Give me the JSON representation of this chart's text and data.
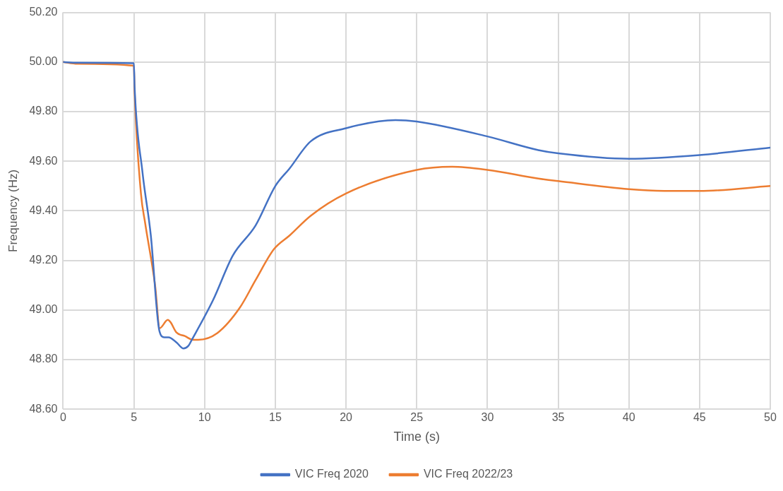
{
  "chart_data": {
    "type": "line",
    "xlabel": "Time (s)",
    "ylabel": "Frequency (Hz)",
    "xlim": [
      0,
      50
    ],
    "xticks": [
      0,
      5,
      10,
      15,
      20,
      25,
      30,
      35,
      40,
      45,
      50
    ],
    "ylim": [
      48.6,
      50.2
    ],
    "yticks": [
      {
        "value": 48.6,
        "label": "48.60"
      },
      {
        "value": 48.8,
        "label": "48.80"
      },
      {
        "value": 49.0,
        "label": "49.00"
      },
      {
        "value": 49.2,
        "label": "49.20"
      },
      {
        "value": 49.4,
        "label": "49.40"
      },
      {
        "value": 49.6,
        "label": "49.60"
      },
      {
        "value": 49.8,
        "label": "49.80"
      },
      {
        "value": 50.0,
        "label": "50.00"
      },
      {
        "value": 50.2,
        "label": "50.20"
      }
    ],
    "grid": true,
    "legend": "bottom",
    "marker": "none",
    "line_style": "solid",
    "series": [
      {
        "name": "VIC Freq 2020",
        "color": "#4472c4",
        "x": [
          0,
          1,
          5,
          5.05,
          5.6,
          6.2,
          6.8,
          7.15,
          7.45,
          8.0,
          8.5,
          8.85,
          9.1,
          10.6,
          12,
          13.6,
          15,
          16,
          17.5,
          20,
          23.5,
          25,
          30,
          33.6,
          35,
          40,
          45,
          50
        ],
        "values": [
          50,
          49.997,
          49.995,
          49.9,
          49.56,
          49.3,
          48.917,
          48.89,
          48.89,
          48.87,
          48.845,
          48.855,
          48.88,
          49.04,
          49.22,
          49.34,
          49.5,
          49.57,
          49.68,
          49.733,
          49.766,
          49.76,
          49.7,
          49.645,
          49.632,
          49.61,
          49.625,
          49.655
        ]
      },
      {
        "name": "VIC Freq 2022/23",
        "color": "#ed7d31",
        "x": [
          0,
          1,
          5,
          5.05,
          5.5,
          5.8,
          6.5,
          6.83,
          7.4,
          7.6,
          8.0,
          8.6,
          9.2,
          9.55,
          10.9,
          12.5,
          13.6,
          14.9,
          16,
          17.5,
          20,
          25,
          27.5,
          30,
          33.6,
          35,
          40,
          42.5,
          45,
          50
        ],
        "values": [
          50,
          49.993,
          49.985,
          49.88,
          49.47,
          49.35,
          49.1,
          48.927,
          48.96,
          48.95,
          48.91,
          48.895,
          48.88,
          48.88,
          48.907,
          49.01,
          49.12,
          49.245,
          49.3,
          49.38,
          49.47,
          49.565,
          49.578,
          49.565,
          49.53,
          49.52,
          49.487,
          49.48,
          49.48,
          49.5
        ]
      }
    ]
  }
}
